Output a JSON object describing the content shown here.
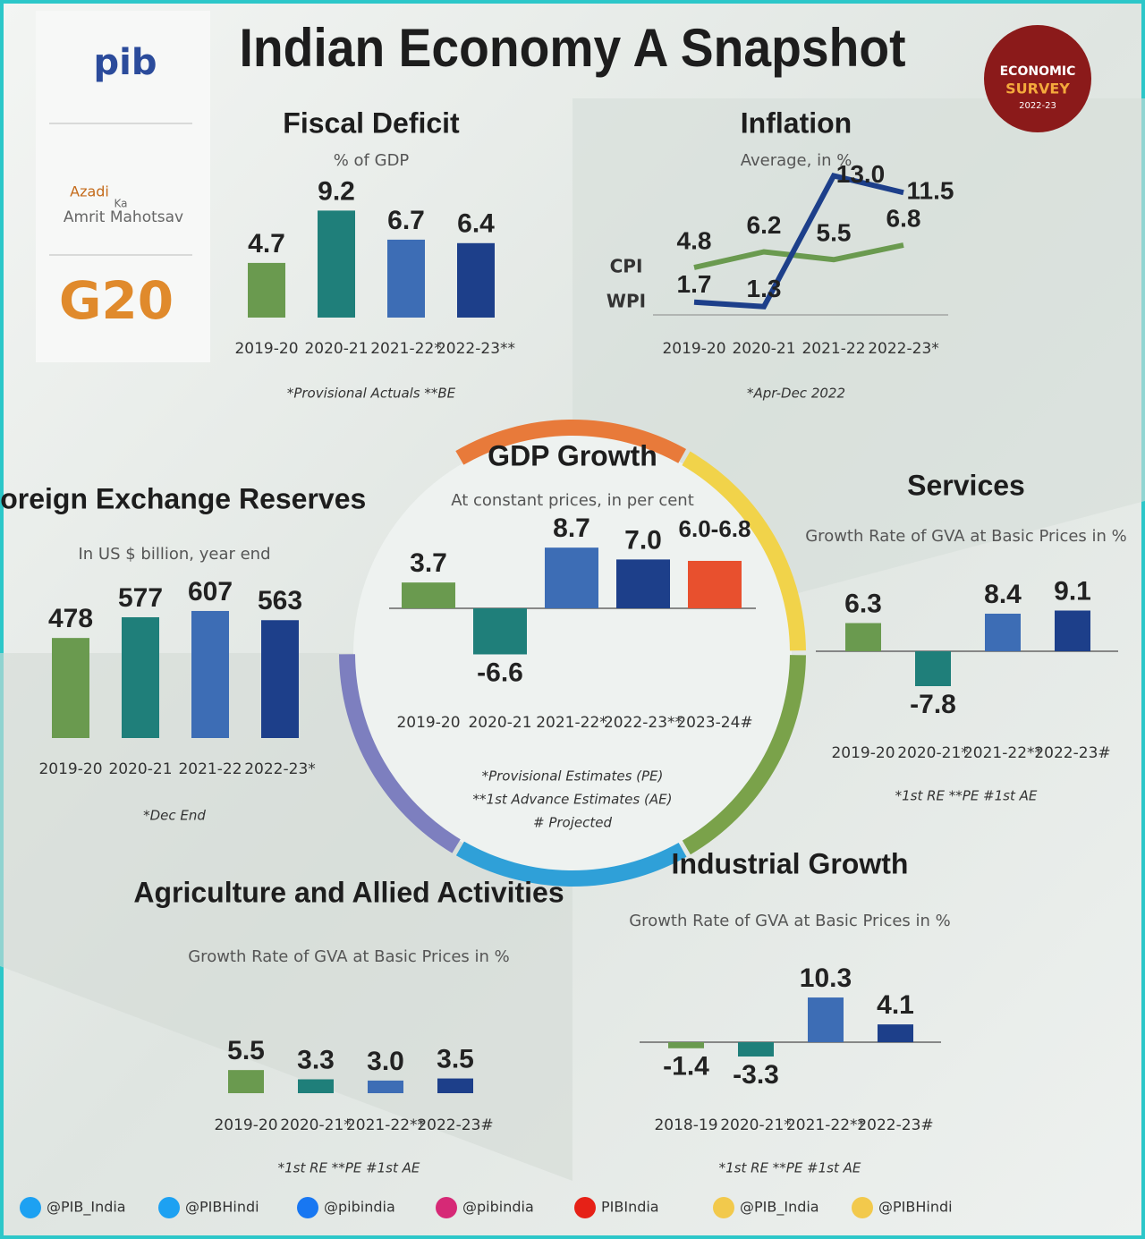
{
  "header": {
    "title": "Indian Economy A Snapshot",
    "badge": [
      "ECONOMIC",
      "SURVEY",
      "2022-23"
    ],
    "logos": [
      "pib",
      "Azadi",
      "Ka",
      "Amrit Mahotsav",
      "G20"
    ]
  },
  "chart_data": [
    {
      "type": "bar",
      "title": "Fiscal Deficit",
      "subtitle": "% of GDP",
      "categories": [
        "2019-20",
        "2020-21",
        "2021-22*",
        "2022-23**"
      ],
      "values": [
        4.7,
        9.2,
        6.7,
        6.4
      ],
      "colors": [
        "#6a9a4f",
        "#1f7f7a",
        "#3d6db5",
        "#1d3f8a"
      ],
      "note": "*Provisional Actuals **BE"
    },
    {
      "type": "line",
      "title": "Inflation",
      "subtitle": "Average, in %",
      "categories": [
        "2019-20",
        "2020-21",
        "2021-22",
        "2022-23*"
      ],
      "series": [
        {
          "name": "CPI",
          "color": "#6a9a4f",
          "values": [
            4.8,
            6.2,
            5.5,
            6.8
          ]
        },
        {
          "name": "WPI",
          "color": "#1d3f8a",
          "values": [
            1.7,
            1.3,
            13.0,
            11.5
          ],
          "value_labels": [
            "1.7",
            "1.3",
            "13.0",
            "11.5"
          ]
        }
      ],
      "note": "*Apr-Dec 2022"
    },
    {
      "type": "bar",
      "title": "Foreign Exchange Reserves",
      "subtitle": "In US $ billion, year end",
      "categories": [
        "2019-20",
        "2020-21",
        "2021-22",
        "2022-23*"
      ],
      "values": [
        478,
        577,
        607,
        563
      ],
      "colors": [
        "#6a9a4f",
        "#1f7f7a",
        "#3d6db5",
        "#1d3f8a"
      ],
      "note": "*Dec End"
    },
    {
      "type": "bar",
      "title": "GDP Growth",
      "subtitle": "At constant prices, in per cent",
      "categories": [
        "2019-20",
        "2020-21",
        "2021-22*",
        "2022-23**",
        "2023-24#"
      ],
      "values": [
        3.7,
        -6.6,
        8.7,
        7.0,
        6.8
      ],
      "value_labels": [
        "3.7",
        "-6.6",
        "8.7",
        "7.0",
        "6.0-6.8"
      ],
      "colors": [
        "#6a9a4f",
        "#1f7f7a",
        "#3d6db5",
        "#1d3f8a",
        "#e8502e"
      ],
      "notes": [
        "*Provisional Estimates (PE)",
        "**1st Advance Estimates (AE)",
        "# Projected"
      ]
    },
    {
      "type": "bar",
      "title": "Services",
      "subtitle": "Growth Rate of GVA at Basic Prices in %",
      "categories": [
        "2019-20",
        "2020-21*",
        "2021-22**",
        "2022-23#"
      ],
      "values": [
        6.3,
        -7.8,
        8.4,
        9.1
      ],
      "colors": [
        "#6a9a4f",
        "#1f7f7a",
        "#3d6db5",
        "#1d3f8a"
      ],
      "note": "*1st RE **PE #1st AE"
    },
    {
      "type": "bar",
      "title": "Agriculture and Allied Activities",
      "subtitle": "Growth Rate of GVA at Basic Prices in %",
      "categories": [
        "2019-20",
        "2020-21*",
        "2021-22**",
        "2022-23#"
      ],
      "values": [
        5.5,
        3.3,
        3.0,
        3.5
      ],
      "value_labels": [
        "5.5",
        "3.3",
        "3.0",
        "3.5"
      ],
      "colors": [
        "#6a9a4f",
        "#1f7f7a",
        "#3d6db5",
        "#1d3f8a"
      ],
      "note": "*1st RE **PE #1st AE"
    },
    {
      "type": "bar",
      "title": "Industrial Growth",
      "subtitle": "Growth Rate of GVA at Basic Prices in %",
      "categories": [
        "2018-19",
        "2020-21*",
        "2021-22**",
        "2022-23#"
      ],
      "values": [
        -1.4,
        -3.3,
        10.3,
        4.1
      ],
      "colors": [
        "#6a9a4f",
        "#1f7f7a",
        "#3d6db5",
        "#1d3f8a"
      ],
      "note": "*1st RE **PE #1st AE"
    }
  ],
  "footer": [
    "@PIB_India",
    "@PIBHindi",
    "@pibindia",
    "@pibindia",
    "PIBIndia",
    "@PIB_India",
    "@PIBHindi"
  ]
}
